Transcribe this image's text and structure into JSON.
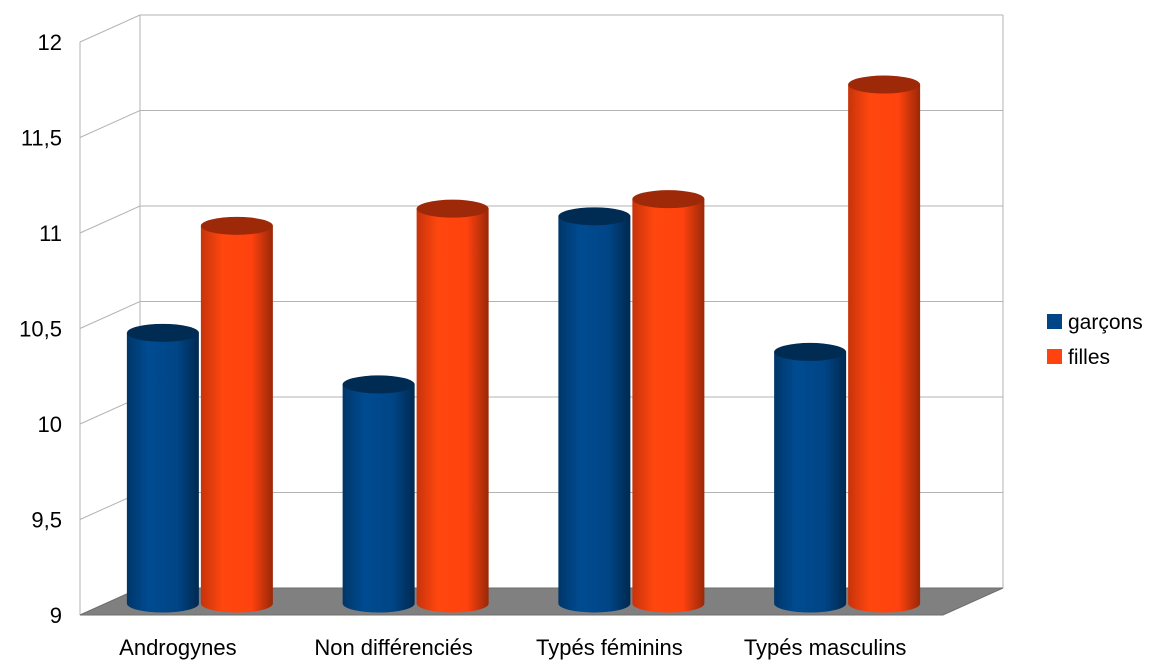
{
  "chart_data": {
    "type": "bar",
    "style": "3d-cylinder",
    "categories": [
      "Androgynes",
      "Non différenciés",
      "Typés féminins",
      "Typés masculins"
    ],
    "series": [
      {
        "name": "garçons",
        "color": "#004586",
        "values": [
          10.37,
          10.1,
          10.98,
          10.27
        ]
      },
      {
        "name": "filles",
        "color": "#ff420e",
        "values": [
          10.93,
          11.02,
          11.07,
          11.67
        ]
      }
    ],
    "y_ticks": [
      "9",
      "9,5",
      "10",
      "10,5",
      "11",
      "11,5",
      "12"
    ],
    "ylim": [
      9,
      12
    ],
    "grid": true,
    "legend_position": "right",
    "floor_color": "#808080",
    "grid_color": "#b3b3b3",
    "title": "",
    "xlabel": "",
    "ylabel": ""
  }
}
